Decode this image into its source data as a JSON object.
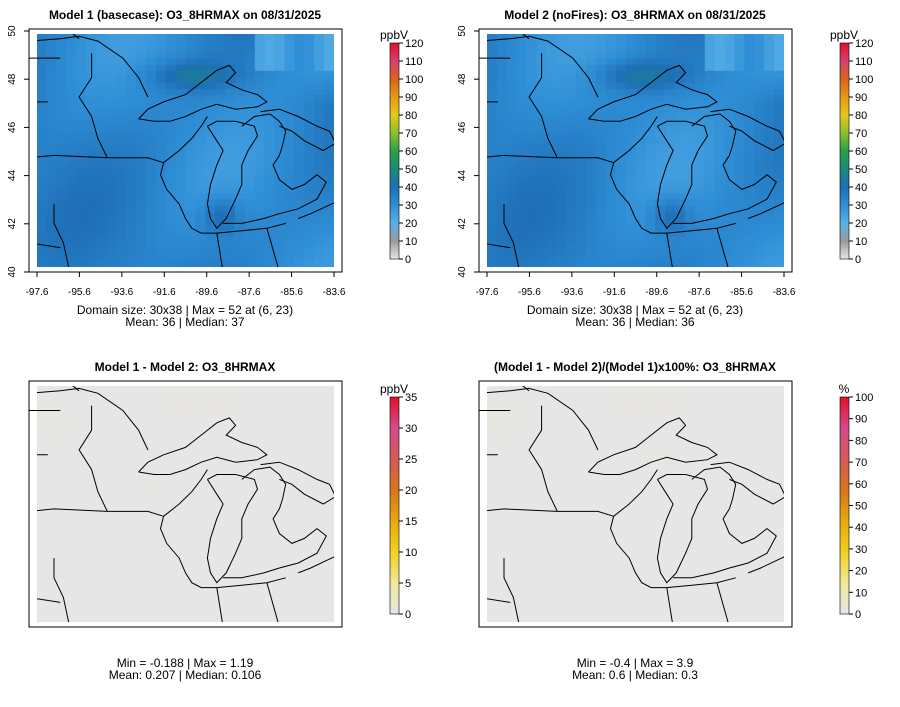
{
  "panels": [
    {
      "id": "p1",
      "title": "Model 1 (basecase): O3_8HRMAX on 08/31/2025",
      "field": "ozone-fire",
      "unit": "ppbV",
      "stats": [
        "Domain size: 30x38 | Max = 52 at (6, 23)",
        "Mean: 36 |  Median: 37"
      ],
      "show_axes": true,
      "colorbar": {
        "ticks": [
          "0",
          "10",
          "20",
          "30",
          "40",
          "50",
          "60",
          "70",
          "80",
          "90",
          "100",
          "110",
          "120"
        ],
        "scale": "ozone",
        "min": 0,
        "max": 120
      }
    },
    {
      "id": "p2",
      "title": "Model 2 (noFires): O3_8HRMAX on 08/31/2025",
      "field": "ozone-nofire",
      "unit": "ppbV",
      "stats": [
        "Domain size: 30x38 | Max = 52 at (6, 23)",
        "Mean: 36 |  Median: 36"
      ],
      "show_axes": true,
      "colorbar": {
        "ticks": [
          "0",
          "10",
          "20",
          "30",
          "40",
          "50",
          "60",
          "70",
          "80",
          "90",
          "100",
          "110",
          "120"
        ],
        "scale": "ozone",
        "min": 0,
        "max": 120
      }
    },
    {
      "id": "p3",
      "title": "Model 1 - Model 2: O3_8HRMAX",
      "field": "diff",
      "unit": "ppbV",
      "stats": [
        "Min = -0.188 | Max = 1.19",
        "Mean: 0.207 |  Median: 0.106"
      ],
      "show_axes": false,
      "colorbar": {
        "ticks": [
          "0",
          "5",
          "10",
          "15",
          "20",
          "25",
          "30",
          "35"
        ],
        "scale": "diff",
        "min": 0,
        "max": 35
      }
    },
    {
      "id": "p4",
      "title": "(Model 1 - Model 2)/(Model 1)x100%: O3_8HRMAX",
      "field": "pct",
      "unit": "%",
      "stats": [
        "Min = -0.4 | Max = 3.9",
        "Mean: 0.6 |  Median: 0.3"
      ],
      "show_axes": false,
      "colorbar": {
        "ticks": [
          "0",
          "10",
          "20",
          "30",
          "40",
          "50",
          "60",
          "70",
          "80",
          "90",
          "100"
        ],
        "scale": "diff",
        "min": 0,
        "max": 100
      }
    }
  ],
  "axes": {
    "x_ticks": [
      "-97.6",
      "-95.6",
      "-93.6",
      "-91.6",
      "-89.6",
      "-87.6",
      "-85.6",
      "-83.6"
    ],
    "y_ticks": [
      "40",
      "42",
      "44",
      "46",
      "48",
      "50"
    ]
  },
  "chart_data": [
    {
      "type": "heatmap",
      "title": "Model 1 (basecase): O3_8HRMAX on 08/31/2025",
      "unit": "ppbV",
      "grid": "30x38",
      "max": 52,
      "max_at": [
        6,
        23
      ],
      "mean": 36,
      "median": 37,
      "colorbar_range": [
        0,
        120
      ],
      "xlim": [
        -97.6,
        -83.6
      ],
      "ylim": [
        40,
        50
      ]
    },
    {
      "type": "heatmap",
      "title": "Model 2 (noFires): O3_8HRMAX on 08/31/2025",
      "unit": "ppbV",
      "grid": "30x38",
      "max": 52,
      "max_at": [
        6,
        23
      ],
      "mean": 36,
      "median": 36,
      "colorbar_range": [
        0,
        120
      ],
      "xlim": [
        -97.6,
        -83.6
      ],
      "ylim": [
        40,
        50
      ]
    },
    {
      "type": "heatmap",
      "title": "Model 1 - Model 2: O3_8HRMAX",
      "unit": "ppbV",
      "min": -0.188,
      "max": 1.19,
      "mean": 0.207,
      "median": 0.106,
      "colorbar_range": [
        0,
        35
      ]
    },
    {
      "type": "heatmap",
      "title": "(Model 1 - Model 2)/(Model 1)x100%: O3_8HRMAX",
      "unit": "%",
      "min": -0.4,
      "max": 3.9,
      "mean": 0.6,
      "median": 0.3,
      "colorbar_range": [
        0,
        100
      ]
    }
  ],
  "colors": {
    "ozone_stops": [
      "#e6e6e6",
      "#9a9a9a",
      "#5ab0e8",
      "#2f8fd6",
      "#1e6fb6",
      "#1c8a7a",
      "#2aa04a",
      "#8cbf2a",
      "#e6c81e",
      "#e69a14",
      "#d8641a",
      "#d6406e",
      "#e0102a"
    ],
    "diff_stops": [
      "#e6e6e6",
      "#f0e89a",
      "#f0d020",
      "#e8a810",
      "#d8761a",
      "#d45a5a",
      "#d64a8a",
      "#e0102a"
    ],
    "background": "#e6e6e6",
    "frame": "#000000"
  }
}
